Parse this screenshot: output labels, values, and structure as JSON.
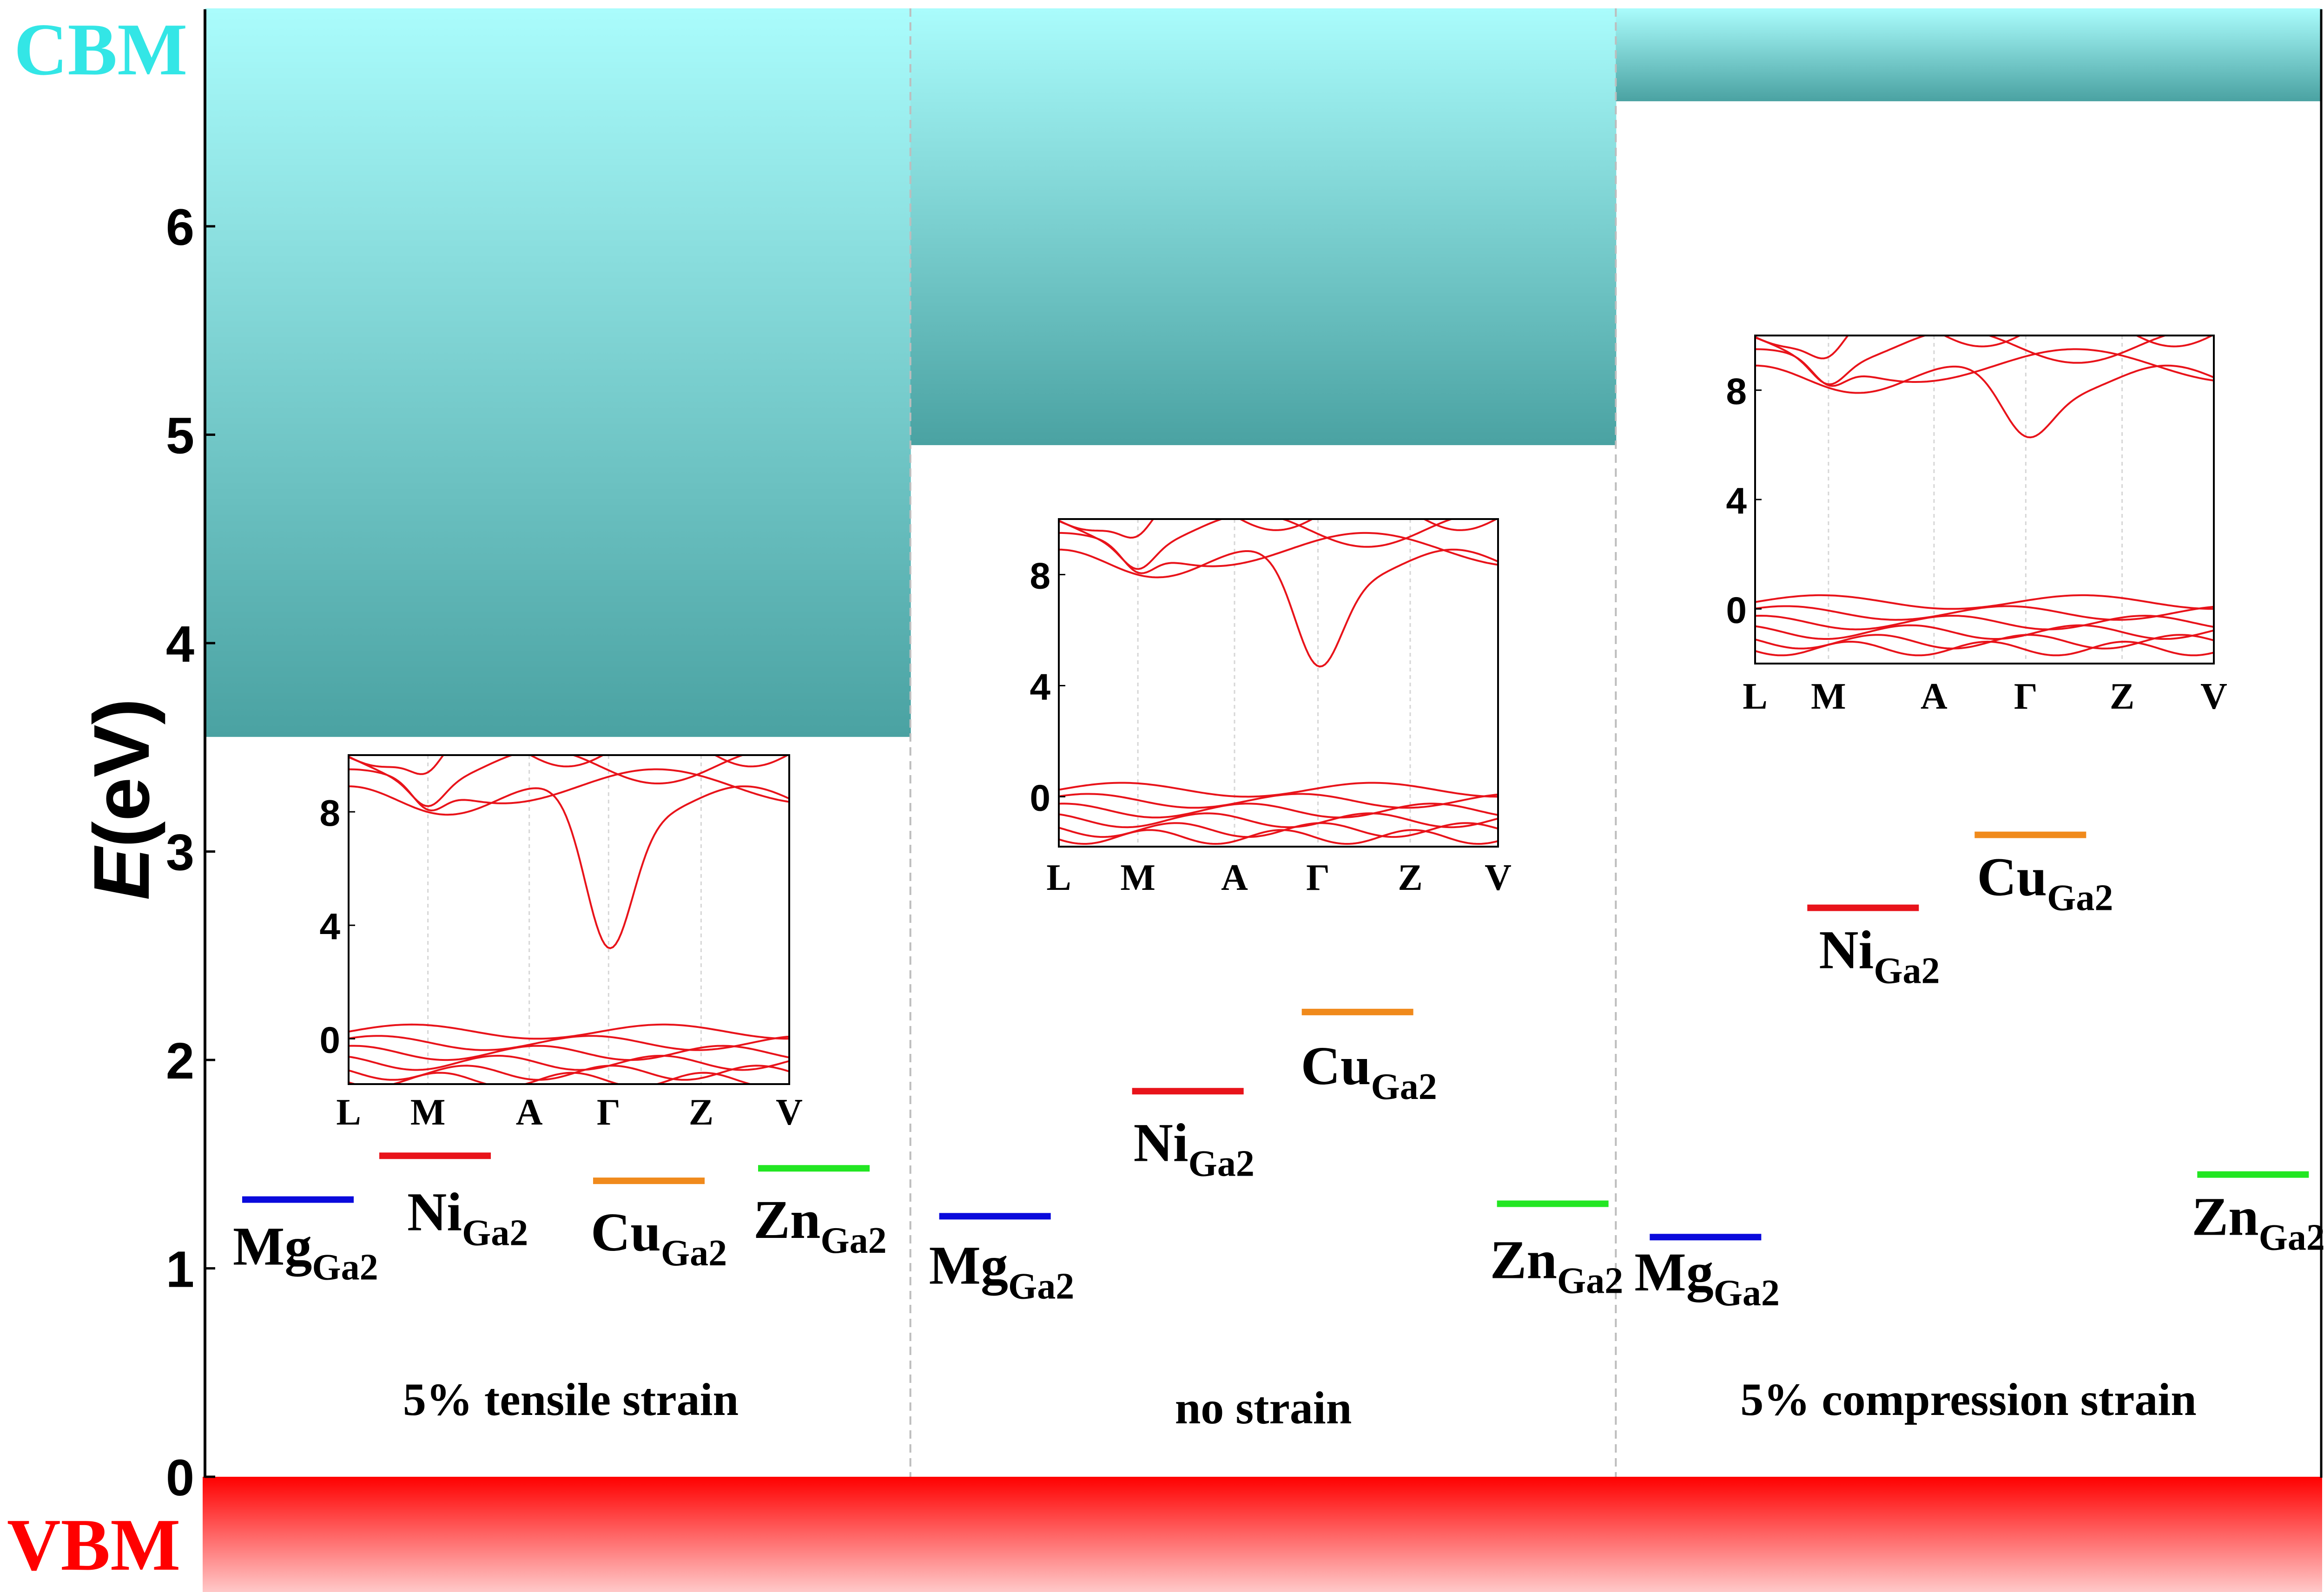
{
  "colors": {
    "cbm_label": "#33e6e6",
    "cbm_top": "#aafcfc",
    "cbm_bottom": "#4aa2a2",
    "vbm": "#ff0000",
    "vbm_bottom": "#ffc8c8",
    "band_line": "#e8131a",
    "Mg": "#0a0adc",
    "Ni": "#e8131a",
    "Cu": "#f08a1c",
    "Zn": "#22e622"
  },
  "labels": {
    "cbm": "CBM",
    "vbm": "VBM",
    "ylabel_italic": "E",
    "ylabel_rest": "(eV)"
  },
  "chart_data": {
    "type": "bar",
    "ylim": [
      0,
      7.0
    ],
    "yticks": [
      0,
      1,
      2,
      3,
      4,
      5,
      6
    ],
    "ylabel": "E(eV)",
    "grid": false,
    "panels": [
      {
        "title": "5% tensile strain",
        "cbm": 3.55,
        "levels": [
          {
            "base": "Mg",
            "sub": "Ga2",
            "value": 1.33
          },
          {
            "base": "Ni",
            "sub": "Ga2",
            "value": 1.54
          },
          {
            "base": "Cu",
            "sub": "Ga2",
            "value": 1.42
          },
          {
            "base": "Zn",
            "sub": "Ga2",
            "value": 1.48
          }
        ],
        "inset": {
          "ylim": [
            -1.6,
            10.0
          ],
          "yticks": [
            0,
            4,
            8
          ],
          "kpoints": [
            "L",
            "M",
            "A",
            "Γ",
            "Z",
            "V"
          ],
          "kpos": [
            0,
            0.18,
            0.41,
            0.59,
            0.8,
            1.0
          ],
          "gap_min": 3.4
        }
      },
      {
        "title": "no strain",
        "cbm": 4.95,
        "levels": [
          {
            "base": "Mg",
            "sub": "Ga2",
            "value": 1.25
          },
          {
            "base": "Ni",
            "sub": "Ga2",
            "value": 1.85
          },
          {
            "base": "Cu",
            "sub": "Ga2",
            "value": 2.23
          },
          {
            "base": "Zn",
            "sub": "Ga2",
            "value": 1.31
          }
        ],
        "inset": {
          "ylim": [
            -1.8,
            10.0
          ],
          "yticks": [
            0,
            4,
            8
          ],
          "kpoints": [
            "L",
            "M",
            "A",
            "Γ",
            "Z",
            "V"
          ],
          "kpos": [
            0,
            0.18,
            0.4,
            0.59,
            0.8,
            1.0
          ],
          "gap_min": 4.9
        }
      },
      {
        "title": "5% compression strain",
        "cbm": 6.6,
        "levels": [
          {
            "base": "Mg",
            "sub": "Ga2",
            "value": 1.15
          },
          {
            "base": "Ni",
            "sub": "Ga2",
            "value": 2.73
          },
          {
            "base": "Cu",
            "sub": "Ga2",
            "value": 3.08
          },
          {
            "base": "Zn",
            "sub": "Ga2",
            "value": 1.45
          }
        ],
        "inset": {
          "ylim": [
            -2.0,
            10.0
          ],
          "yticks": [
            0,
            4,
            8
          ],
          "kpoints": [
            "L",
            "M",
            "A",
            "Γ",
            "Z",
            "V"
          ],
          "kpos": [
            0,
            0.16,
            0.39,
            0.59,
            0.8,
            1.0
          ],
          "gap_min": 6.5
        }
      }
    ]
  }
}
